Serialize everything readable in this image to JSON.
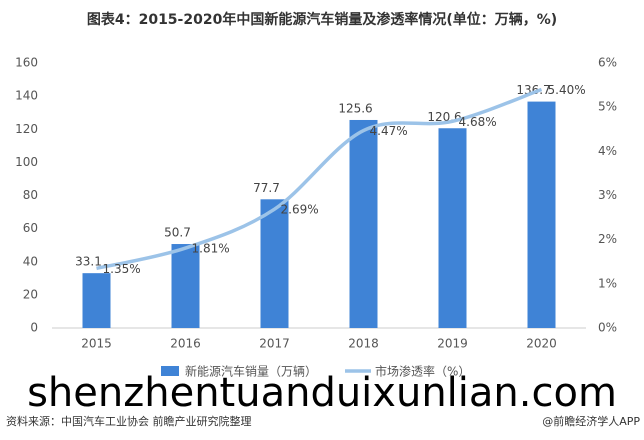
{
  "chart_data": {
    "type": "bar",
    "title": "图表4：2015-2020年中国新能源汽车销量及渗透率情况(单位：万辆，%)",
    "categories": [
      "2015",
      "2016",
      "2017",
      "2018",
      "2019",
      "2020"
    ],
    "series": [
      {
        "name": "新能源汽车销量（万辆）",
        "type": "bar",
        "color": "#3f83d6",
        "values": [
          33.1,
          50.7,
          77.7,
          125.6,
          120.6,
          136.7
        ]
      },
      {
        "name": "市场渗透率（%）",
        "type": "line",
        "axis": "y2",
        "color": "#9cc3e8",
        "values": [
          1.35,
          1.81,
          2.69,
          4.47,
          4.68,
          5.4
        ],
        "value_labels": [
          "1.35%",
          "1.81%",
          "2.69%",
          "4.47%",
          "4.68%",
          "5.40%"
        ]
      }
    ],
    "ylim": [
      0,
      160
    ],
    "yticks": [
      0,
      20,
      40,
      60,
      80,
      100,
      120,
      140,
      160
    ],
    "y2lim": [
      0,
      6
    ],
    "y2ticks": [
      {
        "value": 0,
        "label": "0%"
      },
      {
        "value": 1,
        "label": "1%"
      },
      {
        "value": 2,
        "label": "2%"
      },
      {
        "value": 3,
        "label": "3%"
      },
      {
        "value": 4,
        "label": "4%"
      },
      {
        "value": 5,
        "label": "5%"
      },
      {
        "value": 6,
        "label": "6%"
      }
    ],
    "legend": "bottom",
    "source": "资料来源：中国汽车工业协会 前瞻产业研究院整理",
    "credit": "@前瞻经济学人APP",
    "watermark": "shenzhentuanduixunlian.com"
  }
}
